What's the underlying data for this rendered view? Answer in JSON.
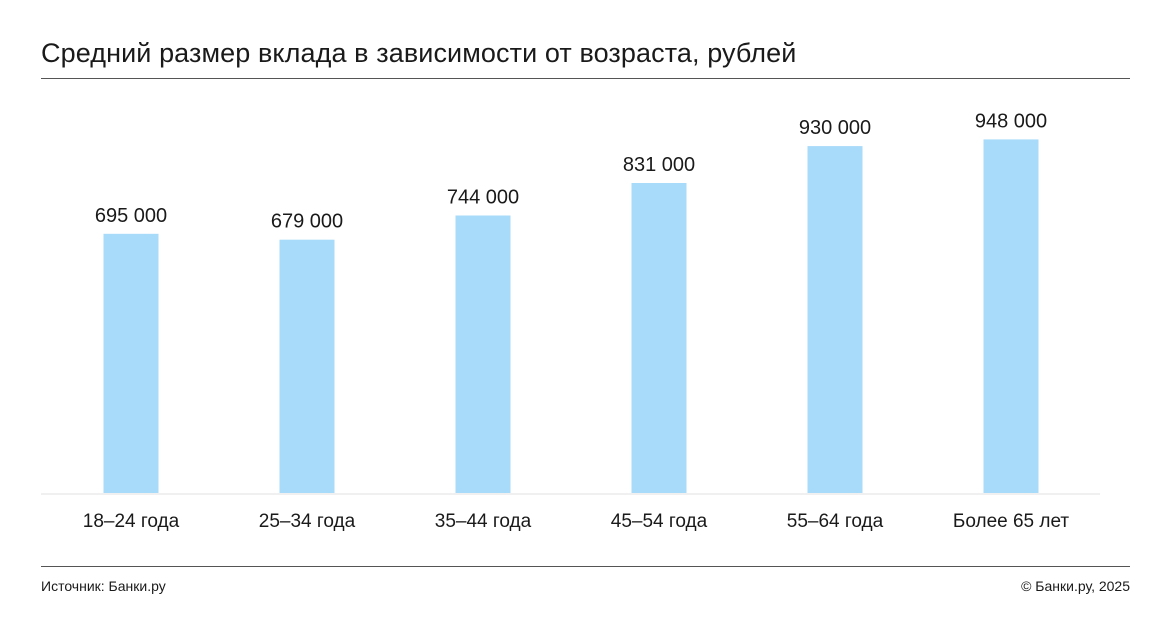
{
  "header": {
    "title": "Средний размер вклада в зависимости от возраста, рублей"
  },
  "footer": {
    "source": "Источник: Банки.ру",
    "copyright": "© Банки.ру, 2025"
  },
  "colors": {
    "bar": "#a8dbf9",
    "rule": "#555555",
    "baseline": "#f0f0f0"
  },
  "chart_data": {
    "type": "bar",
    "title": "Средний размер вклада в зависимости от возраста, рублей",
    "xlabel": "",
    "ylabel": "",
    "categories": [
      "18–24 года",
      "25–34 года",
      "35–44 года",
      "45–54 года",
      "55–64 года",
      "Более 65 лет"
    ],
    "values": [
      695000,
      679000,
      744000,
      831000,
      930000,
      948000
    ],
    "value_labels": [
      "695 000",
      "679 000",
      "744 000",
      "831 000",
      "930 000",
      "948 000"
    ],
    "ylim": [
      0,
      1000000
    ],
    "grid": false,
    "legend": "none"
  }
}
